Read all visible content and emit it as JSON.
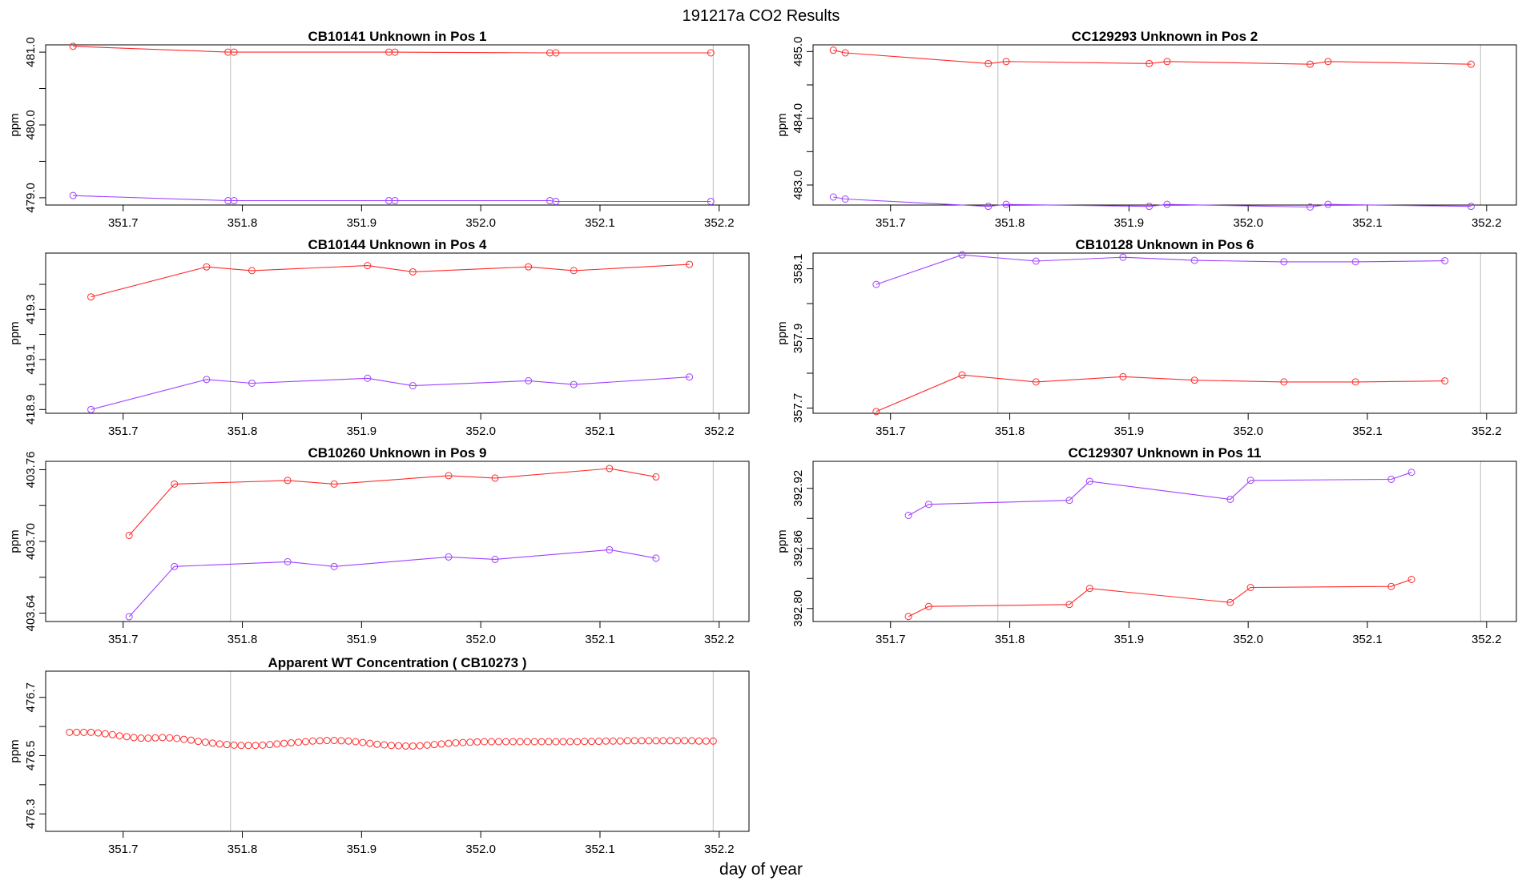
{
  "page": {
    "title": "191217a  CO2 Results",
    "xlabel": "day of year"
  },
  "colors": {
    "red": "#ff2a2a",
    "purple": "#a040ff",
    "vline": "#c8c8c8"
  },
  "chart_data": [
    {
      "type": "line",
      "title": "CB10141    Unknown in Pos 1",
      "ylabel": "ppm",
      "xlim": [
        351.635,
        352.225
      ],
      "ylim": [
        478.9,
        481.1
      ],
      "yticks": [
        "479.0",
        "480.0",
        "481.0"
      ],
      "xticks": [
        "351.7",
        "351.8",
        "351.9",
        "352.0",
        "352.1",
        "352.2"
      ],
      "vlines": [
        351.79,
        352.195
      ],
      "grid": false,
      "series": [
        {
          "color": "#ff2a2a",
          "x": [
            351.658,
            351.788,
            351.793,
            351.923,
            351.928,
            352.058,
            352.063,
            352.193
          ],
          "y": [
            481.08,
            481.0,
            481.0,
            481.0,
            481.0,
            480.99,
            480.99,
            480.99
          ]
        },
        {
          "color": "#a040ff",
          "x": [
            351.658,
            351.788,
            351.793,
            351.923,
            351.928,
            352.058,
            352.063,
            352.193
          ],
          "y": [
            479.03,
            478.96,
            478.96,
            478.96,
            478.96,
            478.96,
            478.95,
            478.95
          ]
        }
      ]
    },
    {
      "type": "line",
      "title": "CC129293    Unknown in Pos 2",
      "ylabel": "ppm",
      "xlim": [
        351.635,
        352.225
      ],
      "ylim": [
        482.7,
        485.1
      ],
      "yticks": [
        "483.0",
        "484.0",
        "485.0"
      ],
      "xticks": [
        "351.7",
        "351.8",
        "351.9",
        "352.0",
        "352.1",
        "352.2"
      ],
      "vlines": [
        351.79,
        352.195
      ],
      "grid": false,
      "series": [
        {
          "color": "#ff2a2a",
          "x": [
            351.652,
            351.662,
            351.782,
            351.797,
            351.917,
            351.932,
            352.052,
            352.067,
            352.187
          ],
          "y": [
            485.02,
            484.98,
            484.82,
            484.85,
            484.82,
            484.85,
            484.81,
            484.85,
            484.81
          ]
        },
        {
          "color": "#a040ff",
          "x": [
            351.652,
            351.662,
            351.782,
            351.797,
            351.917,
            351.932,
            352.052,
            352.067,
            352.187
          ],
          "y": [
            482.82,
            482.79,
            482.68,
            482.71,
            482.68,
            482.71,
            482.67,
            482.71,
            482.68
          ]
        }
      ]
    },
    {
      "type": "line",
      "title": "CB10144    Unknown in Pos 4",
      "ylabel": "ppm",
      "xlim": [
        351.635,
        352.225
      ],
      "ylim": [
        418.885,
        419.525
      ],
      "yticks": [
        "418.9",
        "419.1",
        "419.3"
      ],
      "xticks": [
        "351.7",
        "351.8",
        "351.9",
        "352.0",
        "352.1",
        "352.2"
      ],
      "vlines": [
        351.79,
        352.195
      ],
      "grid": false,
      "series": [
        {
          "color": "#ff2a2a",
          "x": [
            351.673,
            351.77,
            351.808,
            351.905,
            351.943,
            352.04,
            352.078,
            352.175
          ],
          "y": [
            419.35,
            419.47,
            419.455,
            419.475,
            419.45,
            419.47,
            419.455,
            419.48
          ]
        },
        {
          "color": "#a040ff",
          "x": [
            351.673,
            351.77,
            351.808,
            351.905,
            351.943,
            352.04,
            352.078,
            352.175
          ],
          "y": [
            418.9,
            419.02,
            419.005,
            419.025,
            418.995,
            419.015,
            419.0,
            419.03
          ]
        }
      ]
    },
    {
      "type": "line",
      "title": "CB10128    Unknown in Pos 6",
      "ylabel": "ppm",
      "xlim": [
        351.635,
        352.225
      ],
      "ylim": [
        357.685,
        358.145
      ],
      "yticks": [
        "357.7",
        "357.9",
        "358.1"
      ],
      "xticks": [
        "351.7",
        "351.8",
        "351.9",
        "352.0",
        "352.1",
        "352.2"
      ],
      "vlines": [
        351.79,
        352.195
      ],
      "grid": false,
      "series": [
        {
          "color": "#a040ff",
          "x": [
            351.688,
            351.76,
            351.822,
            351.895,
            351.955,
            352.03,
            352.09,
            352.165
          ],
          "y": [
            358.055,
            358.14,
            358.122,
            358.133,
            358.124,
            358.12,
            358.12,
            358.123
          ]
        },
        {
          "color": "#ff2a2a",
          "x": [
            351.688,
            351.76,
            351.822,
            351.895,
            351.955,
            352.03,
            352.09,
            352.165
          ],
          "y": [
            357.69,
            357.795,
            357.775,
            357.79,
            357.78,
            357.775,
            357.775,
            357.778
          ]
        }
      ]
    },
    {
      "type": "line",
      "title": "CB10260    Unknown in Pos 9",
      "ylabel": "ppm",
      "xlim": [
        351.635,
        352.225
      ],
      "ylim": [
        403.633,
        403.767
      ],
      "yticks": [
        "403.64",
        "403.70",
        "403.76"
      ],
      "xticks": [
        "351.7",
        "351.8",
        "351.9",
        "352.0",
        "352.1",
        "352.2"
      ],
      "vlines": [
        351.79,
        352.195
      ],
      "grid": false,
      "series": [
        {
          "color": "#ff2a2a",
          "x": [
            351.705,
            351.743,
            351.838,
            351.877,
            351.973,
            352.012,
            352.108,
            352.147
          ],
          "y": [
            403.705,
            403.748,
            403.751,
            403.748,
            403.755,
            403.753,
            403.761,
            403.754
          ]
        },
        {
          "color": "#a040ff",
          "x": [
            351.705,
            351.743,
            351.838,
            351.877,
            351.973,
            352.012,
            352.108,
            352.147
          ],
          "y": [
            403.637,
            403.679,
            403.683,
            403.679,
            403.687,
            403.685,
            403.693,
            403.686
          ]
        }
      ]
    },
    {
      "type": "line",
      "title": "CC129307    Unknown in Pos 11",
      "ylabel": "ppm",
      "xlim": [
        351.635,
        352.225
      ],
      "ylim": [
        392.787,
        392.947
      ],
      "yticks": [
        "392.80",
        "392.86",
        "392.92"
      ],
      "xticks": [
        "351.7",
        "351.8",
        "351.9",
        "352.0",
        "352.1",
        "352.2"
      ],
      "vlines": [
        351.79,
        352.195
      ],
      "grid": false,
      "series": [
        {
          "color": "#a040ff",
          "x": [
            351.715,
            351.732,
            351.85,
            351.867,
            351.985,
            352.002,
            352.12,
            352.137
          ],
          "y": [
            392.893,
            392.904,
            392.908,
            392.927,
            392.909,
            392.928,
            392.929,
            392.936
          ]
        },
        {
          "color": "#ff2a2a",
          "x": [
            351.715,
            351.732,
            351.85,
            351.867,
            351.985,
            352.002,
            352.12,
            352.137
          ],
          "y": [
            392.792,
            392.802,
            392.804,
            392.82,
            392.806,
            392.821,
            392.822,
            392.829
          ]
        }
      ]
    },
    {
      "type": "line",
      "title": "Apparent WT Concentration ( CB10273 )",
      "ylabel": "ppm",
      "xlim": [
        351.635,
        352.225
      ],
      "ylim": [
        476.24,
        476.79
      ],
      "yticks": [
        "476.3",
        "476.5",
        "476.7"
      ],
      "xticks": [
        "351.7",
        "351.8",
        "351.9",
        "352.0",
        "352.1",
        "352.2"
      ],
      "vlines": [
        351.79,
        352.195
      ],
      "grid": false,
      "series": [
        {
          "color": "#ff2a2a",
          "x": [
            351.655,
            351.661,
            351.667,
            351.673,
            351.679,
            351.685,
            351.691,
            351.697,
            351.703,
            351.709,
            351.715,
            351.721,
            351.727,
            351.733,
            351.739,
            351.745,
            351.751,
            351.757,
            351.763,
            351.769,
            351.775,
            351.781,
            351.787,
            351.793,
            351.799,
            351.805,
            351.811,
            351.817,
            351.823,
            351.829,
            351.835,
            351.841,
            351.847,
            351.853,
            351.859,
            351.865,
            351.871,
            351.877,
            351.883,
            351.889,
            351.895,
            351.901,
            351.907,
            351.913,
            351.919,
            351.925,
            351.931,
            351.937,
            351.943,
            351.949,
            351.955,
            351.961,
            351.967,
            351.973,
            351.979,
            351.985,
            351.991,
            351.997,
            352.003,
            352.009,
            352.015,
            352.021,
            352.027,
            352.033,
            352.039,
            352.045,
            352.051,
            352.057,
            352.063,
            352.069,
            352.075,
            352.081,
            352.087,
            352.093,
            352.099,
            352.105,
            352.111,
            352.117,
            352.123,
            352.129,
            352.135,
            352.141,
            352.147,
            352.153,
            352.159,
            352.165,
            352.171,
            352.177,
            352.183,
            352.189,
            352.195
          ],
          "y": [
            476.58,
            476.58,
            476.58,
            476.58,
            476.578,
            476.575,
            476.572,
            476.568,
            476.565,
            476.562,
            476.56,
            476.56,
            476.561,
            476.562,
            476.561,
            476.559,
            476.556,
            476.553,
            476.549,
            476.546,
            476.543,
            476.54,
            476.538,
            476.536,
            476.535,
            476.535,
            476.535,
            476.536,
            476.538,
            476.54,
            476.542,
            476.544,
            476.546,
            476.548,
            476.55,
            476.551,
            476.552,
            476.552,
            476.551,
            476.55,
            476.548,
            476.545,
            476.542,
            476.539,
            476.537,
            476.535,
            476.534,
            476.533,
            476.533,
            476.534,
            476.536,
            476.538,
            476.54,
            476.542,
            476.544,
            476.545,
            476.546,
            476.547,
            476.548,
            476.548,
            476.548,
            476.548,
            476.548,
            476.548,
            476.548,
            476.548,
            476.548,
            476.548,
            476.548,
            476.548,
            476.548,
            476.548,
            476.549,
            476.549,
            476.549,
            476.55,
            476.55,
            476.55,
            476.551,
            476.551,
            476.551,
            476.551,
            476.551,
            476.551,
            476.551,
            476.551,
            476.551,
            476.551,
            476.55,
            476.55,
            476.55
          ]
        }
      ]
    }
  ]
}
